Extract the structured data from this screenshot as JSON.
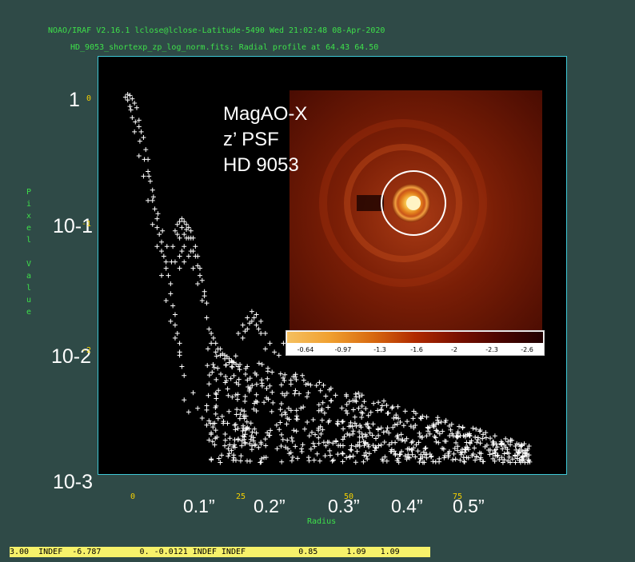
{
  "header": {
    "line1": "NOAO/IRAF V2.16.1 lclose@lclose-Latitude-5490 Wed 21:02:48 08-Apr-2020",
    "line2": "HD_9053_shortexp_zp_log_norm.fits: Radial profile at 64.43 64.50"
  },
  "inset_title": [
    "MagAO-X",
    "z’ PSF",
    "HD 9053"
  ],
  "colorbar_ticks": [
    "-0.64",
    "-0.97",
    "-1.3",
    "-1.6",
    "-2",
    "-2.3",
    "-2.6"
  ],
  "status_bar": "3.00  INDEF  -6.787        0. -0.0121 INDEF INDEF           0.85      1.09   1.09",
  "chart_data": {
    "type": "scatter",
    "title": "",
    "xlabel": "Radius",
    "ylabel": "Pixel Value",
    "y_scale": "log",
    "ylim": [
      0.001,
      1
    ],
    "xlim": [
      -6,
      98
    ],
    "x_ticks_pixels": [
      "0",
      "25",
      "50",
      "75"
    ],
    "x_ticks_arcsec": [
      "0.1”",
      "0.2”",
      "0.3”",
      "0.4”",
      "0.5”"
    ],
    "y_ticks": [
      "1",
      "10-1",
      "10-2",
      "10-3"
    ],
    "y_tick_labels_small": [
      "0",
      "-1",
      "-2"
    ],
    "marker": "+",
    "series_color": "#ffffff",
    "points": [
      [
        0.5,
        1.0
      ],
      [
        1,
        0.98
      ],
      [
        1.5,
        0.92
      ],
      [
        2,
        0.85
      ],
      [
        2.5,
        0.78
      ],
      [
        3,
        0.62
      ],
      [
        3,
        0.55
      ],
      [
        3.5,
        0.5
      ],
      [
        4,
        0.45
      ],
      [
        4.5,
        0.36
      ],
      [
        5,
        0.3
      ],
      [
        5,
        0.24
      ],
      [
        5.5,
        0.2
      ],
      [
        6,
        0.17
      ],
      [
        6,
        0.14
      ],
      [
        6.5,
        0.12
      ],
      [
        7,
        0.1
      ],
      [
        7,
        0.085
      ],
      [
        7.5,
        0.075
      ],
      [
        8,
        0.065
      ],
      [
        8,
        0.055
      ],
      [
        8.5,
        0.05
      ],
      [
        9,
        0.045
      ],
      [
        9,
        0.04
      ],
      [
        9.5,
        0.035
      ],
      [
        10,
        0.03
      ],
      [
        10,
        0.025
      ],
      [
        10.5,
        0.02
      ],
      [
        11,
        0.017
      ],
      [
        11,
        0.014
      ],
      [
        11.5,
        0.012
      ],
      [
        12,
        0.01
      ],
      [
        12,
        0.008
      ],
      [
        12.5,
        0.0065
      ],
      [
        13,
        0.0055
      ],
      [
        12,
        0.0085
      ],
      [
        11,
        0.011
      ],
      [
        10,
        0.015
      ],
      [
        9,
        0.022
      ],
      [
        8,
        0.035
      ],
      [
        7,
        0.06
      ],
      [
        6,
        0.09
      ],
      [
        5,
        0.14
      ],
      [
        4,
        0.22
      ],
      [
        3,
        0.32
      ],
      [
        2,
        0.5
      ],
      [
        1.5,
        0.65
      ],
      [
        1,
        0.8
      ],
      [
        0.5,
        0.9
      ],
      [
        0,
        0.95
      ],
      [
        1.2,
        0.75
      ],
      [
        2.2,
        0.6
      ],
      [
        3.2,
        0.42
      ],
      [
        4.2,
        0.3
      ],
      [
        5.2,
        0.22
      ],
      [
        6.2,
        0.15
      ],
      [
        7.2,
        0.11
      ],
      [
        8.2,
        0.08
      ],
      [
        9.2,
        0.06
      ],
      [
        10.2,
        0.045
      ],
      [
        11,
        0.08
      ],
      [
        11.5,
        0.09
      ],
      [
        12,
        0.095
      ],
      [
        12.5,
        0.1
      ],
      [
        13,
        0.095
      ],
      [
        13.5,
        0.09
      ],
      [
        14,
        0.085
      ],
      [
        14.5,
        0.08
      ],
      [
        15,
        0.07
      ],
      [
        15.5,
        0.06
      ],
      [
        16,
        0.05
      ],
      [
        16.5,
        0.04
      ],
      [
        17,
        0.032
      ],
      [
        17.5,
        0.026
      ],
      [
        18,
        0.021
      ],
      [
        12,
        0.07
      ],
      [
        13,
        0.075
      ],
      [
        14,
        0.07
      ],
      [
        15,
        0.055
      ],
      [
        16,
        0.042
      ],
      [
        10.5,
        0.06
      ],
      [
        11.5,
        0.075
      ],
      [
        12.5,
        0.085
      ],
      [
        13.5,
        0.082
      ],
      [
        14.5,
        0.07
      ],
      [
        15.5,
        0.05
      ],
      [
        16.5,
        0.035
      ],
      [
        17.5,
        0.024
      ],
      [
        12,
        0.05
      ],
      [
        13,
        0.06
      ],
      [
        11,
        0.045
      ],
      [
        12,
        0.04
      ],
      [
        13,
        0.045
      ],
      [
        14,
        0.05
      ],
      [
        15,
        0.04
      ],
      [
        16,
        0.03
      ],
      [
        17,
        0.022
      ],
      [
        13.5,
        0.07
      ],
      [
        14.5,
        0.055
      ],
      [
        12.5,
        0.055
      ],
      [
        18,
        0.016
      ],
      [
        19,
        0.012
      ],
      [
        20,
        0.01
      ],
      [
        21,
        0.009
      ],
      [
        22,
        0.008
      ],
      [
        23,
        0.0075
      ],
      [
        24,
        0.007
      ],
      [
        19,
        0.01
      ],
      [
        20,
        0.0085
      ],
      [
        21,
        0.008
      ],
      [
        22,
        0.0075
      ],
      [
        23,
        0.007
      ],
      [
        18.5,
        0.013
      ],
      [
        19.5,
        0.011
      ],
      [
        20.5,
        0.009
      ],
      [
        21.5,
        0.0082
      ],
      [
        22.5,
        0.0078
      ],
      [
        23.5,
        0.0072
      ],
      [
        24.5,
        0.0068
      ],
      [
        25,
        0.0065
      ],
      [
        25,
        0.012
      ],
      [
        26,
        0.014
      ],
      [
        27,
        0.016
      ],
      [
        28,
        0.018
      ],
      [
        29,
        0.017
      ],
      [
        30,
        0.015
      ],
      [
        31,
        0.012
      ],
      [
        32,
        0.01
      ],
      [
        33,
        0.0085
      ],
      [
        34,
        0.008
      ],
      [
        26,
        0.011
      ],
      [
        27,
        0.013
      ],
      [
        28,
        0.015
      ],
      [
        29,
        0.014
      ],
      [
        30,
        0.012
      ],
      [
        27.5,
        0.0145
      ],
      [
        28.5,
        0.016
      ],
      [
        29.5,
        0.013
      ],
      [
        26.5,
        0.0125
      ],
      [
        31,
        0.009
      ],
      [
        35,
        0.01
      ],
      [
        36,
        0.011
      ],
      [
        37,
        0.012
      ],
      [
        38,
        0.011
      ],
      [
        39,
        0.01
      ],
      [
        40,
        0.009
      ],
      [
        41,
        0.0085
      ],
      [
        36,
        0.009
      ],
      [
        37,
        0.0095
      ],
      [
        38,
        0.009
      ],
      [
        15,
        0.004
      ],
      [
        16,
        0.003
      ],
      [
        17,
        0.0025
      ],
      [
        20,
        0.002
      ],
      [
        22,
        0.0015
      ],
      [
        24,
        0.0012
      ],
      [
        26,
        0.0018
      ],
      [
        28,
        0.0014
      ],
      [
        30,
        0.0016
      ],
      [
        21,
        0.0011
      ],
      [
        13,
        0.0035
      ],
      [
        14,
        0.0028
      ],
      [
        18,
        0.0022
      ],
      [
        19,
        0.0019
      ],
      [
        23,
        0.0013
      ],
      [
        25,
        0.0017
      ],
      [
        27,
        0.0021
      ],
      [
        29,
        0.0019
      ],
      [
        31,
        0.0017
      ],
      [
        20,
        0.0027
      ]
    ],
    "band": {
      "x_start": 18,
      "x_end": 90,
      "upper_start": 0.0095,
      "upper_end": 0.0015,
      "lower": 0.0011
    }
  }
}
